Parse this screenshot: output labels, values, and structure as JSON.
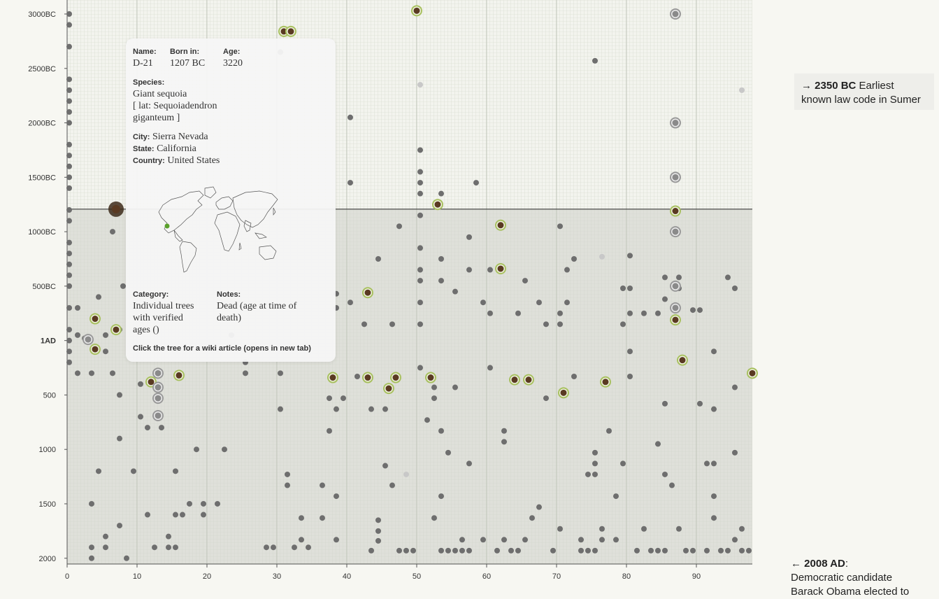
{
  "chart_data": {
    "type": "scatter",
    "title": "",
    "xlabel": "",
    "ylabel": "",
    "xlim": [
      0,
      98
    ],
    "ylim": [
      -3000,
      2008
    ],
    "x_ticks": [
      0,
      10,
      20,
      30,
      40,
      50,
      60,
      70,
      80,
      90
    ],
    "y_ticks": [
      {
        "value": -3000,
        "label": "3000BC"
      },
      {
        "value": -2500,
        "label": "2500BC"
      },
      {
        "value": -2000,
        "label": "2000BC"
      },
      {
        "value": -1500,
        "label": "1500BC"
      },
      {
        "value": -1000,
        "label": "1000BC"
      },
      {
        "value": -500,
        "label": "500BC"
      },
      {
        "value": 0,
        "label": "1AD"
      },
      {
        "value": 500,
        "label": "500"
      },
      {
        "value": 1000,
        "label": "1000"
      },
      {
        "value": 1500,
        "label": "1500"
      },
      {
        "value": 2000,
        "label": "2000"
      }
    ],
    "reference_line_year": -1207,
    "grid": true,
    "colors": {
      "dot": "#6e6e6e",
      "dead_fill": "#5a3a22",
      "dead_ring": "#a8c060",
      "group_ring": "#999999",
      "faded": "#c8c8c8",
      "highlight": "#3d2a1a",
      "map_marker": "#5aa02c"
    },
    "series": [
      {
        "marker": "dot",
        "points": [
          [
            0.3,
            -3000
          ],
          [
            0.3,
            -2900
          ],
          [
            0.3,
            -2700
          ],
          [
            0.3,
            -2400
          ],
          [
            0.3,
            -2300
          ],
          [
            0.3,
            -2200
          ],
          [
            0.3,
            -2100
          ],
          [
            0.3,
            -2000
          ],
          [
            0.3,
            -1800
          ],
          [
            0.3,
            -1700
          ],
          [
            0.3,
            -1600
          ],
          [
            0.3,
            -1500
          ],
          [
            0.3,
            -1400
          ],
          [
            0.3,
            -1200
          ],
          [
            0.3,
            -1100
          ],
          [
            0.3,
            -900
          ],
          [
            0.3,
            -800
          ],
          [
            0.3,
            -700
          ],
          [
            0.3,
            -600
          ],
          [
            0.3,
            -500
          ],
          [
            0.3,
            -300
          ],
          [
            0.3,
            -100
          ],
          [
            0.3,
            0
          ],
          [
            0.3,
            100
          ],
          [
            0.3,
            200
          ],
          [
            1.5,
            -300
          ],
          [
            1.5,
            -50
          ],
          [
            1.5,
            300
          ],
          [
            2.5,
            -20
          ],
          [
            3.5,
            300
          ],
          [
            3.5,
            1900
          ],
          [
            3.5,
            2000
          ],
          [
            3.5,
            1500
          ],
          [
            4.5,
            1200
          ],
          [
            4.5,
            -400
          ],
          [
            5.5,
            1800
          ],
          [
            5.5,
            1900
          ],
          [
            5.5,
            -50
          ],
          [
            5.5,
            100
          ],
          [
            6.5,
            300
          ],
          [
            6.5,
            -1000
          ],
          [
            7.5,
            -100
          ],
          [
            7.5,
            900
          ],
          [
            7.5,
            500
          ],
          [
            7.5,
            1700
          ],
          [
            8.5,
            2000
          ],
          [
            8,
            -500
          ],
          [
            9.5,
            1200
          ],
          [
            10.5,
            400
          ],
          [
            10.5,
            700
          ],
          [
            11.5,
            800
          ],
          [
            11.5,
            1600
          ],
          [
            12.5,
            1900
          ],
          [
            13.5,
            800
          ],
          [
            14.5,
            1800
          ],
          [
            14.5,
            1900
          ],
          [
            15.5,
            1200
          ],
          [
            15.5,
            1600
          ],
          [
            15.5,
            1900
          ],
          [
            16.5,
            1600
          ],
          [
            17.5,
            1500
          ],
          [
            18.5,
            1000
          ],
          [
            19.5,
            1500
          ],
          [
            19.5,
            1600
          ],
          [
            21.5,
            1500
          ],
          [
            22.5,
            1000
          ],
          [
            23.5,
            -50
          ],
          [
            25.5,
            200
          ],
          [
            25.5,
            300
          ],
          [
            28.5,
            1900
          ],
          [
            29.5,
            1900
          ],
          [
            30.5,
            -2650
          ],
          [
            30.5,
            300
          ],
          [
            30.5,
            630
          ],
          [
            31.5,
            1230
          ],
          [
            31.5,
            1330
          ],
          [
            32.5,
            1900
          ],
          [
            33.5,
            1630
          ],
          [
            33.5,
            1830
          ],
          [
            34.5,
            1900
          ],
          [
            36.5,
            1330
          ],
          [
            36.5,
            1630
          ],
          [
            37.5,
            830
          ],
          [
            37.5,
            530
          ],
          [
            38.5,
            630
          ],
          [
            38.5,
            1430
          ],
          [
            38.5,
            1830
          ],
          [
            38.5,
            -430
          ],
          [
            38.5,
            -300
          ],
          [
            39.5,
            530
          ],
          [
            40.5,
            -2050
          ],
          [
            40.5,
            -1450
          ],
          [
            40.5,
            -350
          ],
          [
            41.5,
            330
          ],
          [
            42.5,
            -150
          ],
          [
            43.5,
            630
          ],
          [
            43.5,
            1930
          ],
          [
            44.5,
            -750
          ],
          [
            44.5,
            1650
          ],
          [
            44.5,
            1750
          ],
          [
            44.5,
            1840
          ],
          [
            45.5,
            1150
          ],
          [
            45.5,
            630
          ],
          [
            46.5,
            -150
          ],
          [
            46.5,
            1330
          ],
          [
            47.5,
            -1050
          ],
          [
            47.5,
            1930
          ],
          [
            48.5,
            1930
          ],
          [
            49.5,
            1930
          ],
          [
            50.5,
            -1750
          ],
          [
            50.5,
            -1550
          ],
          [
            50.5,
            -1450
          ],
          [
            50.5,
            -1350
          ],
          [
            50.5,
            -1150
          ],
          [
            50.5,
            -850
          ],
          [
            50.5,
            -650
          ],
          [
            50.5,
            -550
          ],
          [
            50.5,
            -350
          ],
          [
            50.5,
            -150
          ],
          [
            50.5,
            250
          ],
          [
            51.5,
            730
          ],
          [
            52.5,
            430
          ],
          [
            52.5,
            530
          ],
          [
            52.5,
            1630
          ],
          [
            53.5,
            -1350
          ],
          [
            53.5,
            -750
          ],
          [
            53.5,
            -550
          ],
          [
            53.5,
            830
          ],
          [
            53.5,
            1430
          ],
          [
            53.5,
            1930
          ],
          [
            54.5,
            1030
          ],
          [
            54.5,
            1930
          ],
          [
            55.5,
            -450
          ],
          [
            55.5,
            430
          ],
          [
            55.5,
            1930
          ],
          [
            56.5,
            1830
          ],
          [
            56.5,
            1930
          ],
          [
            57.5,
            -950
          ],
          [
            57.5,
            -650
          ],
          [
            57.5,
            1130
          ],
          [
            57.5,
            1930
          ],
          [
            58.5,
            -1450
          ],
          [
            59.5,
            -350
          ],
          [
            59.5,
            1830
          ],
          [
            60.5,
            -650
          ],
          [
            60.5,
            -250
          ],
          [
            60.5,
            250
          ],
          [
            61.5,
            1930
          ],
          [
            62.5,
            830
          ],
          [
            62.5,
            930
          ],
          [
            62.5,
            1830
          ],
          [
            63.5,
            1930
          ],
          [
            64.5,
            -250
          ],
          [
            64.5,
            1930
          ],
          [
            65.5,
            -550
          ],
          [
            65.5,
            1830
          ],
          [
            66.5,
            1630
          ],
          [
            67.5,
            -350
          ],
          [
            67.5,
            1530
          ],
          [
            68.5,
            -150
          ],
          [
            68.5,
            530
          ],
          [
            69.5,
            1930
          ],
          [
            70.5,
            -1050
          ],
          [
            70.5,
            -250
          ],
          [
            70.5,
            -150
          ],
          [
            70.5,
            1730
          ],
          [
            71.5,
            -650
          ],
          [
            71.5,
            -350
          ],
          [
            72.5,
            -750
          ],
          [
            72.5,
            330
          ],
          [
            73.5,
            1830
          ],
          [
            73.5,
            1930
          ],
          [
            74.5,
            1230
          ],
          [
            74.5,
            1930
          ],
          [
            75.5,
            -2570
          ],
          [
            75.5,
            1030
          ],
          [
            75.5,
            1130
          ],
          [
            75.5,
            1230
          ],
          [
            75.5,
            1930
          ],
          [
            76.5,
            1730
          ],
          [
            76.5,
            1830
          ],
          [
            77.5,
            830
          ],
          [
            78.5,
            1430
          ],
          [
            78.5,
            1830
          ],
          [
            79.5,
            -480
          ],
          [
            79.5,
            -150
          ],
          [
            79.5,
            1130
          ],
          [
            80.5,
            -780
          ],
          [
            80.5,
            -480
          ],
          [
            80.5,
            -250
          ],
          [
            80.5,
            100
          ],
          [
            80.5,
            330
          ],
          [
            81.5,
            1930
          ],
          [
            82.5,
            -250
          ],
          [
            82.5,
            1730
          ],
          [
            83.5,
            1930
          ],
          [
            84.5,
            -250
          ],
          [
            84.5,
            950
          ],
          [
            84.5,
            1930
          ],
          [
            85.5,
            -580
          ],
          [
            85.5,
            -380
          ],
          [
            85.5,
            580
          ],
          [
            85.5,
            1230
          ],
          [
            85.5,
            1930
          ],
          [
            86.5,
            1330
          ],
          [
            87.5,
            -580
          ],
          [
            87.5,
            -480
          ],
          [
            87.5,
            1730
          ],
          [
            88.5,
            1930
          ],
          [
            89.5,
            -280
          ],
          [
            89.5,
            1930
          ],
          [
            90.5,
            -280
          ],
          [
            90.5,
            580
          ],
          [
            91.5,
            1130
          ],
          [
            91.5,
            1930
          ],
          [
            92.5,
            100
          ],
          [
            92.5,
            630
          ],
          [
            92.5,
            1130
          ],
          [
            92.5,
            1430
          ],
          [
            92.5,
            1630
          ],
          [
            93.5,
            1930
          ],
          [
            94.5,
            -580
          ],
          [
            94.5,
            1930
          ],
          [
            95.5,
            -480
          ],
          [
            95.5,
            430
          ],
          [
            95.5,
            1030
          ],
          [
            95.5,
            1830
          ],
          [
            96.5,
            1730
          ],
          [
            96.5,
            1930
          ],
          [
            97.5,
            1930
          ]
        ]
      },
      {
        "marker": "dead",
        "points": [
          [
            31,
            -2840
          ],
          [
            32,
            -2840
          ],
          [
            50,
            -3030
          ],
          [
            53,
            -1250
          ],
          [
            62,
            -1060
          ],
          [
            62,
            -660
          ],
          [
            43,
            -440
          ],
          [
            4,
            -200
          ],
          [
            7,
            -100
          ],
          [
            4,
            80
          ],
          [
            12,
            380
          ],
          [
            16,
            320
          ],
          [
            38,
            340
          ],
          [
            43,
            340
          ],
          [
            47,
            340
          ],
          [
            46,
            440
          ],
          [
            52,
            340
          ],
          [
            64,
            360
          ],
          [
            66,
            360
          ],
          [
            71,
            480
          ],
          [
            77,
            380
          ],
          [
            87,
            -1190
          ],
          [
            87,
            -190
          ],
          [
            88,
            180
          ],
          [
            98,
            300
          ]
        ]
      },
      {
        "marker": "group",
        "points": [
          [
            87,
            -3000
          ],
          [
            87,
            -2000
          ],
          [
            87,
            -1500
          ],
          [
            87,
            -1000
          ],
          [
            87,
            -500
          ],
          [
            87,
            -300
          ],
          [
            3,
            -10
          ],
          [
            13,
            300
          ],
          [
            13,
            430
          ],
          [
            13,
            530
          ],
          [
            13,
            690
          ]
        ]
      },
      {
        "marker": "faded",
        "points": [
          [
            50.5,
            -2350
          ],
          [
            96.5,
            -2300
          ],
          [
            76.5,
            -770
          ],
          [
            48.5,
            1230
          ]
        ]
      },
      {
        "marker": "highlight",
        "points": [
          [
            7,
            -1207
          ]
        ]
      }
    ]
  },
  "tooltip": {
    "name_label": "Name:",
    "name_value": "D-21",
    "born_label": "Born in:",
    "born_value": "1207 BC",
    "age_label": "Age:",
    "age_value": "3220",
    "species_label": "Species:",
    "species_line1": "Giant sequoia",
    "species_line2": "[ lat: Sequoiadendron",
    "species_line3": "giganteum ]",
    "city_label": "City:",
    "city_value": "Sierra Nevada",
    "state_label": "State:",
    "state_value": "California",
    "country_label": "Country:",
    "country_value": "United States",
    "category_label": "Category:",
    "category_line1": "Individual trees",
    "category_line2": "with verified",
    "category_line3": "ages ()",
    "notes_label": "Notes:",
    "notes_line1": "Dead (age at time of",
    "notes_line2": "death)",
    "hint": "Click the tree for a wiki article (opens in new tab)"
  },
  "notes": {
    "top_bold": "→ 2350 BC",
    "top_text1": " Earliest",
    "top_text2": "known law code in Sumer",
    "bottom_bold": "← 2008 AD",
    "bottom_colon": ":",
    "bottom_text1": "Democratic candidate",
    "bottom_text2": "Barack Obama elected to"
  }
}
